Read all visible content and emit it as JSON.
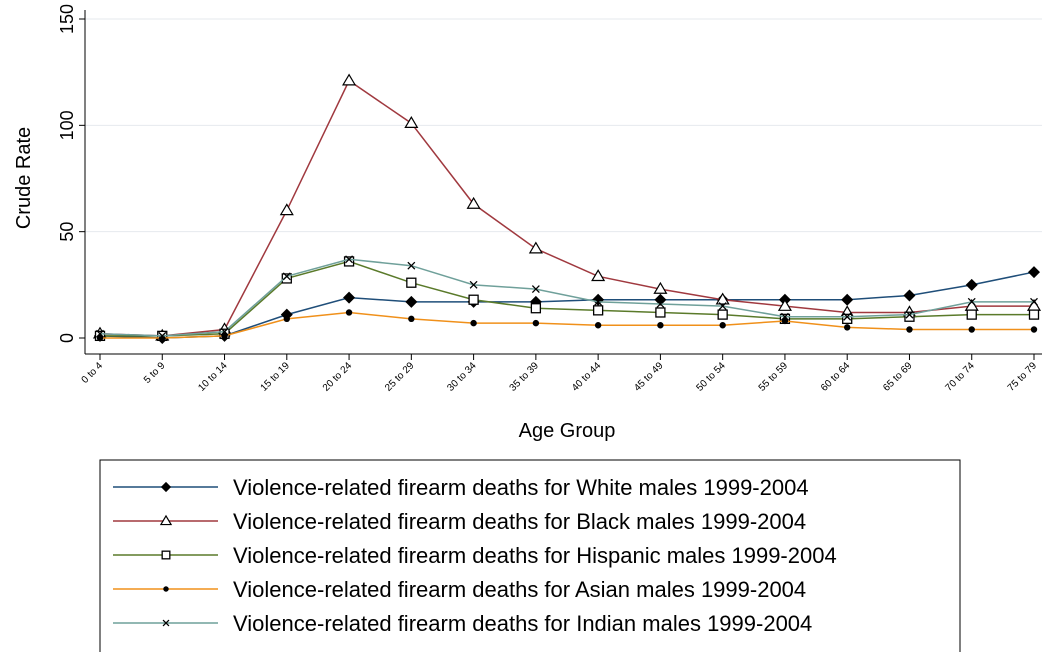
{
  "chart_data": {
    "type": "line",
    "xlabel": "Age Group",
    "ylabel": "Crude Rate",
    "ylim": [
      0,
      150
    ],
    "yticks": [
      0,
      50,
      100,
      150
    ],
    "grid": "horizontal",
    "legend_position": "bottom",
    "categories": [
      "0 to 4",
      "5 to 9",
      "10 to 14",
      "15 to 19",
      "20 to 24",
      "25 to 29",
      "30 to 34",
      "35 to 39",
      "40 to 44",
      "45 to 49",
      "50 to 54",
      "55 to 59",
      "60 to 64",
      "65 to 69",
      "70 to 74",
      "75 to 79"
    ],
    "series": [
      {
        "name": "Violence-related firearm deaths for White males 1999-2004",
        "color": "#1f4e79",
        "marker": "diamond",
        "values": [
          1,
          0,
          1,
          11,
          19,
          17,
          17,
          17,
          18,
          18,
          18,
          18,
          18,
          20,
          25,
          31
        ]
      },
      {
        "name": "Violence-related firearm deaths for Black males 1999-2004",
        "color": "#a0393f",
        "marker": "triangle",
        "values": [
          2,
          1,
          4,
          60,
          121,
          101,
          63,
          42,
          29,
          23,
          18,
          15,
          12,
          12,
          15,
          15
        ]
      },
      {
        "name": "Violence-related firearm deaths for Hispanic males 1999-2004",
        "color": "#5a7a2a",
        "marker": "square",
        "values": [
          1,
          1,
          2,
          28,
          36,
          26,
          18,
          14,
          13,
          12,
          11,
          9,
          9,
          10,
          11,
          11
        ]
      },
      {
        "name": "Violence-related firearm deaths for Asian males 1999-2004",
        "color": "#f0901a",
        "marker": "dot",
        "values": [
          0,
          0,
          1,
          9,
          12,
          9,
          7,
          7,
          6,
          6,
          6,
          8,
          5,
          4,
          4,
          4
        ]
      },
      {
        "name": "Violence-related firearm deaths for Indian males 1999-2004",
        "color": "#6fa09a",
        "marker": "x",
        "values": [
          2,
          1,
          3,
          29,
          37,
          34,
          25,
          23,
          17,
          16,
          15,
          10,
          10,
          11,
          17,
          17
        ]
      }
    ]
  }
}
